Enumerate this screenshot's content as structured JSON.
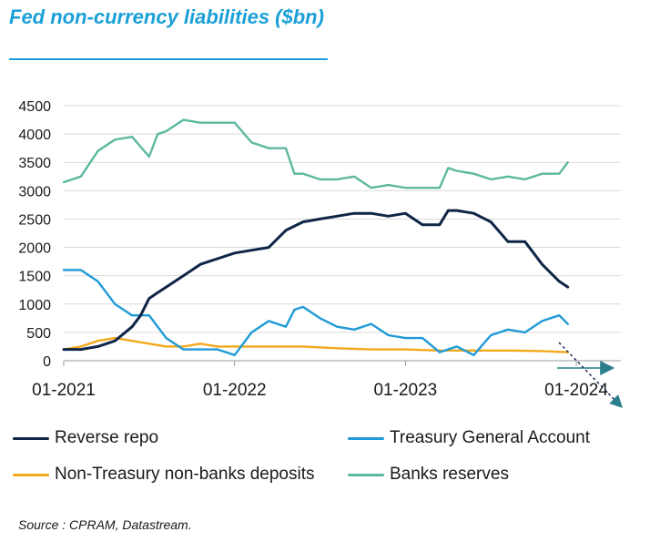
{
  "title": "Fed non-currency liabilities ($bn)",
  "source": "Source : CPRAM, Datastream.",
  "colors": {
    "reverse_repo": "#0f2547",
    "tga": "#1f9ad6",
    "non_treasury": "#f2a91a",
    "reserves": "#5cb8a0",
    "title": "#1aa0d8",
    "arrow": "#2a7d8c"
  },
  "chart_data": {
    "type": "line",
    "title": "Fed non-currency liabilities ($bn)",
    "xlabel": "",
    "ylabel": "",
    "ylim": [
      0,
      4500
    ],
    "yticks": [
      0,
      500,
      1000,
      1500,
      2000,
      2500,
      3000,
      3500,
      4000,
      4500
    ],
    "xlim": [
      2021.0,
      2024.0
    ],
    "xticks": [
      {
        "value": 2021.0,
        "label": "01-2021"
      },
      {
        "value": 2022.0,
        "label": "01-2022"
      },
      {
        "value": 2023.0,
        "label": "01-2023"
      },
      {
        "value": 2024.0,
        "label": "01-2024"
      }
    ],
    "grid": "horizontal",
    "legend_position": "bottom",
    "series": [
      {
        "name": "Reverse repo",
        "color": "#0f2547",
        "x": [
          2021.0,
          2021.1,
          2021.2,
          2021.3,
          2021.4,
          2021.45,
          2021.5,
          2021.55,
          2021.6,
          2021.7,
          2021.8,
          2021.85,
          2021.9,
          2022.0,
          2022.1,
          2022.2,
          2022.3,
          2022.4,
          2022.5,
          2022.6,
          2022.7,
          2022.8,
          2022.9,
          2023.0,
          2023.1,
          2023.2,
          2023.25,
          2023.3,
          2023.4,
          2023.5,
          2023.6,
          2023.7,
          2023.8,
          2023.9,
          2023.95
        ],
        "y": [
          200,
          200,
          250,
          350,
          600,
          800,
          1100,
          1200,
          1300,
          1500,
          1700,
          1750,
          1800,
          1900,
          1950,
          2000,
          2300,
          2450,
          2500,
          2550,
          2600,
          2600,
          2550,
          2600,
          2400,
          2400,
          2650,
          2650,
          2600,
          2450,
          2100,
          2100,
          1700,
          1400,
          1300
        ]
      },
      {
        "name": "Treasury General Account",
        "color": "#1f9ad6",
        "x": [
          2021.0,
          2021.1,
          2021.2,
          2021.3,
          2021.4,
          2021.5,
          2021.6,
          2021.7,
          2021.8,
          2021.9,
          2022.0,
          2022.1,
          2022.2,
          2022.3,
          2022.35,
          2022.4,
          2022.5,
          2022.6,
          2022.7,
          2022.8,
          2022.9,
          2023.0,
          2023.1,
          2023.2,
          2023.3,
          2023.4,
          2023.5,
          2023.6,
          2023.7,
          2023.8,
          2023.9,
          2023.95
        ],
        "y": [
          1600,
          1600,
          1400,
          1000,
          800,
          800,
          400,
          200,
          200,
          200,
          100,
          500,
          700,
          600,
          900,
          950,
          750,
          600,
          550,
          650,
          450,
          400,
          400,
          150,
          250,
          100,
          450,
          550,
          500,
          700,
          800,
          650
        ]
      },
      {
        "name": "Non-Treasury non-banks deposits",
        "color": "#f2a91a",
        "x": [
          2021.0,
          2021.1,
          2021.2,
          2021.3,
          2021.4,
          2021.5,
          2021.6,
          2021.7,
          2021.8,
          2021.9,
          2022.0,
          2022.2,
          2022.4,
          2022.6,
          2022.8,
          2023.0,
          2023.2,
          2023.4,
          2023.6,
          2023.8,
          2023.95
        ],
        "y": [
          200,
          250,
          350,
          400,
          350,
          300,
          250,
          250,
          300,
          250,
          250,
          250,
          250,
          220,
          200,
          200,
          180,
          180,
          180,
          170,
          150
        ]
      },
      {
        "name": "Banks reserves",
        "color": "#5cb8a0",
        "x": [
          2021.0,
          2021.1,
          2021.2,
          2021.3,
          2021.4,
          2021.5,
          2021.55,
          2021.6,
          2021.7,
          2021.8,
          2021.9,
          2022.0,
          2022.1,
          2022.2,
          2022.3,
          2022.35,
          2022.4,
          2022.5,
          2022.6,
          2022.7,
          2022.8,
          2022.9,
          2023.0,
          2023.1,
          2023.2,
          2023.25,
          2023.3,
          2023.4,
          2023.5,
          2023.6,
          2023.7,
          2023.8,
          2023.9,
          2023.95
        ],
        "y": [
          3150,
          3250,
          3700,
          3900,
          3950,
          3600,
          4000,
          4050,
          4250,
          4200,
          4200,
          4200,
          3850,
          3750,
          3750,
          3300,
          3300,
          3200,
          3200,
          3250,
          3050,
          3100,
          3050,
          3050,
          3050,
          3400,
          3350,
          3300,
          3200,
          3250,
          3200,
          3300,
          3300,
          3500
        ]
      }
    ]
  }
}
